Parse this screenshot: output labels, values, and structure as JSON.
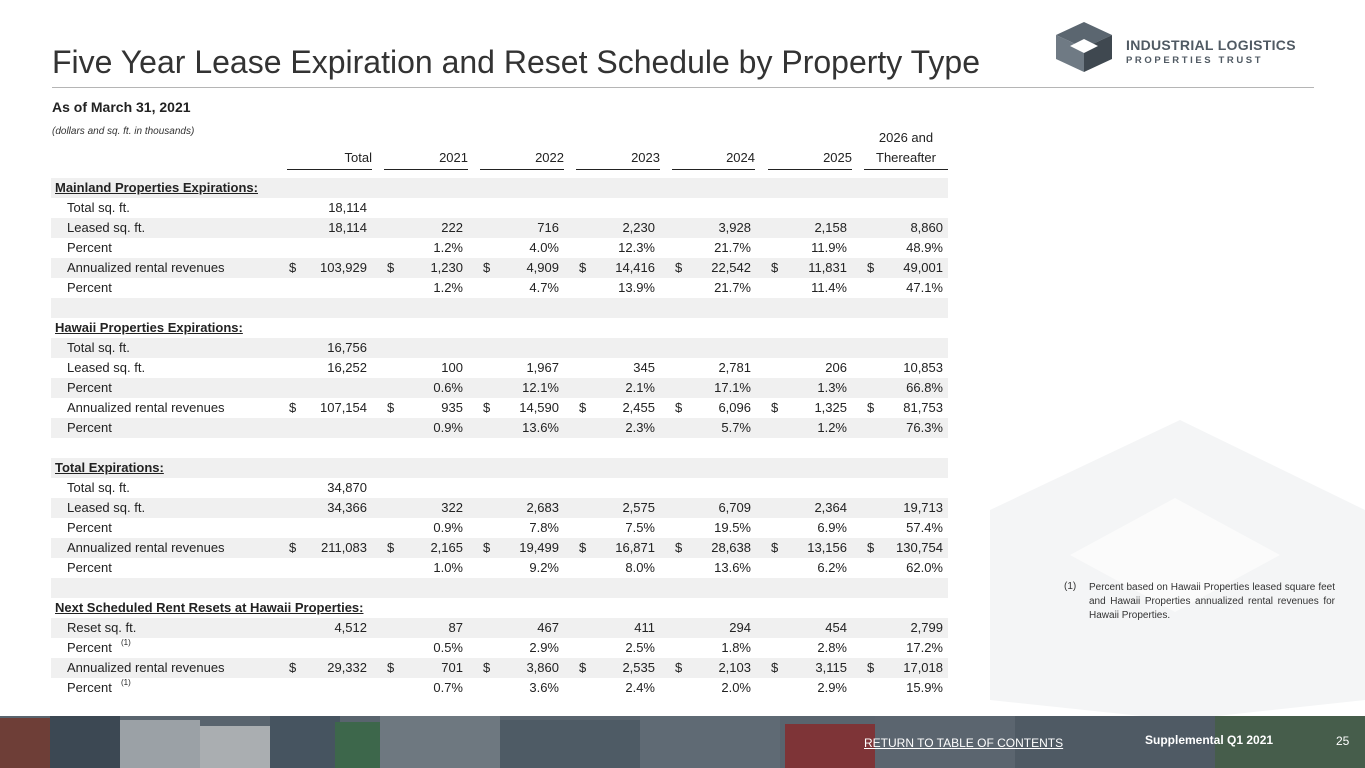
{
  "title": "Five Year Lease Expiration and Reset Schedule by Property Type",
  "as_of": "As of March 31, 2021",
  "units_note": "(dollars and sq. ft. in thousands)",
  "logo": {
    "line1": "INDUSTRIAL LOGISTICS",
    "line2": "PROPERTIES TRUST"
  },
  "columns": [
    "Total",
    "2021",
    "2022",
    "2023",
    "2024",
    "2025",
    "2026 and",
    "Thereafter"
  ],
  "rows": [
    {
      "type": "section",
      "label": "Mainland Properties Expirations:"
    },
    {
      "label": "Total sq. ft.",
      "values": [
        "18,114",
        "",
        "",
        "",
        "",
        "",
        ""
      ]
    },
    {
      "label": "Leased sq. ft.",
      "values": [
        "18,114",
        "222",
        "716",
        "2,230",
        "3,928",
        "2,158",
        "8,860"
      ]
    },
    {
      "label": "Percent",
      "values": [
        "",
        "1.2%",
        "4.0%",
        "12.3%",
        "21.7%",
        "11.9%",
        "48.9%"
      ]
    },
    {
      "label": "Annualized rental revenues",
      "dollar": "$",
      "values": [
        "103,929",
        "1,230",
        "4,909",
        "14,416",
        "22,542",
        "11,831",
        "49,001"
      ]
    },
    {
      "label": "Percent",
      "values": [
        "",
        "1.2%",
        "4.7%",
        "13.9%",
        "21.7%",
        "11.4%",
        "47.1%"
      ]
    },
    {
      "type": "blank"
    },
    {
      "type": "section",
      "label": "Hawaii Properties Expirations:"
    },
    {
      "label": "Total sq. ft.",
      "values": [
        "16,756",
        "",
        "",
        "",
        "",
        "",
        ""
      ]
    },
    {
      "label": "Leased sq. ft.",
      "values": [
        "16,252",
        "100",
        "1,967",
        "345",
        "2,781",
        "206",
        "10,853"
      ]
    },
    {
      "label": "Percent",
      "values": [
        "",
        "0.6%",
        "12.1%",
        "2.1%",
        "17.1%",
        "1.3%",
        "66.8%"
      ]
    },
    {
      "label": "Annualized rental revenues",
      "dollar": "$",
      "values": [
        "107,154",
        "935",
        "14,590",
        "2,455",
        "6,096",
        "1,325",
        "81,753"
      ]
    },
    {
      "label": "Percent",
      "values": [
        "",
        "0.9%",
        "13.6%",
        "2.3%",
        "5.7%",
        "1.2%",
        "76.3%"
      ]
    },
    {
      "type": "blank"
    },
    {
      "type": "section",
      "label": "Total Expirations:"
    },
    {
      "label": "Total sq. ft.",
      "values": [
        "34,870",
        "",
        "",
        "",
        "",
        "",
        ""
      ]
    },
    {
      "label": "Leased sq. ft.",
      "values": [
        "34,366",
        "322",
        "2,683",
        "2,575",
        "6,709",
        "2,364",
        "19,713"
      ]
    },
    {
      "label": "Percent",
      "values": [
        "",
        "0.9%",
        "7.8%",
        "7.5%",
        "19.5%",
        "6.9%",
        "57.4%"
      ]
    },
    {
      "label": "Annualized rental revenues",
      "dollar": "$",
      "values": [
        "211,083",
        "2,165",
        "19,499",
        "16,871",
        "28,638",
        "13,156",
        "130,754"
      ]
    },
    {
      "label": "Percent",
      "values": [
        "",
        "1.0%",
        "9.2%",
        "8.0%",
        "13.6%",
        "6.2%",
        "62.0%"
      ]
    },
    {
      "type": "blank"
    },
    {
      "type": "section",
      "label": "Next Scheduled Rent Resets at Hawaii Properties:"
    },
    {
      "label": "Reset sq. ft.",
      "values": [
        "4,512",
        "87",
        "467",
        "411",
        "294",
        "454",
        "2,799"
      ]
    },
    {
      "label": "Percent",
      "footnote": "(1)",
      "values": [
        "",
        "0.5%",
        "2.9%",
        "2.5%",
        "1.8%",
        "2.8%",
        "17.2%"
      ]
    },
    {
      "label": "Annualized rental revenues",
      "dollar": "$",
      "values": [
        "29,332",
        "701",
        "3,860",
        "2,535",
        "2,103",
        "3,115",
        "17,018"
      ]
    },
    {
      "label": "Percent",
      "footnote": "(1)",
      "values": [
        "",
        "0.7%",
        "3.6%",
        "2.4%",
        "2.0%",
        "2.9%",
        "15.9%"
      ]
    }
  ],
  "footnote": {
    "mark": "(1)",
    "text": "Percent based on Hawaii Properties leased square feet and Hawaii Properties annualized rental revenues for Hawaii Properties."
  },
  "footer": {
    "return_link": "RETURN TO TABLE OF CONTENTS",
    "supplemental": "Supplemental Q1 2021",
    "page_number": "25"
  }
}
